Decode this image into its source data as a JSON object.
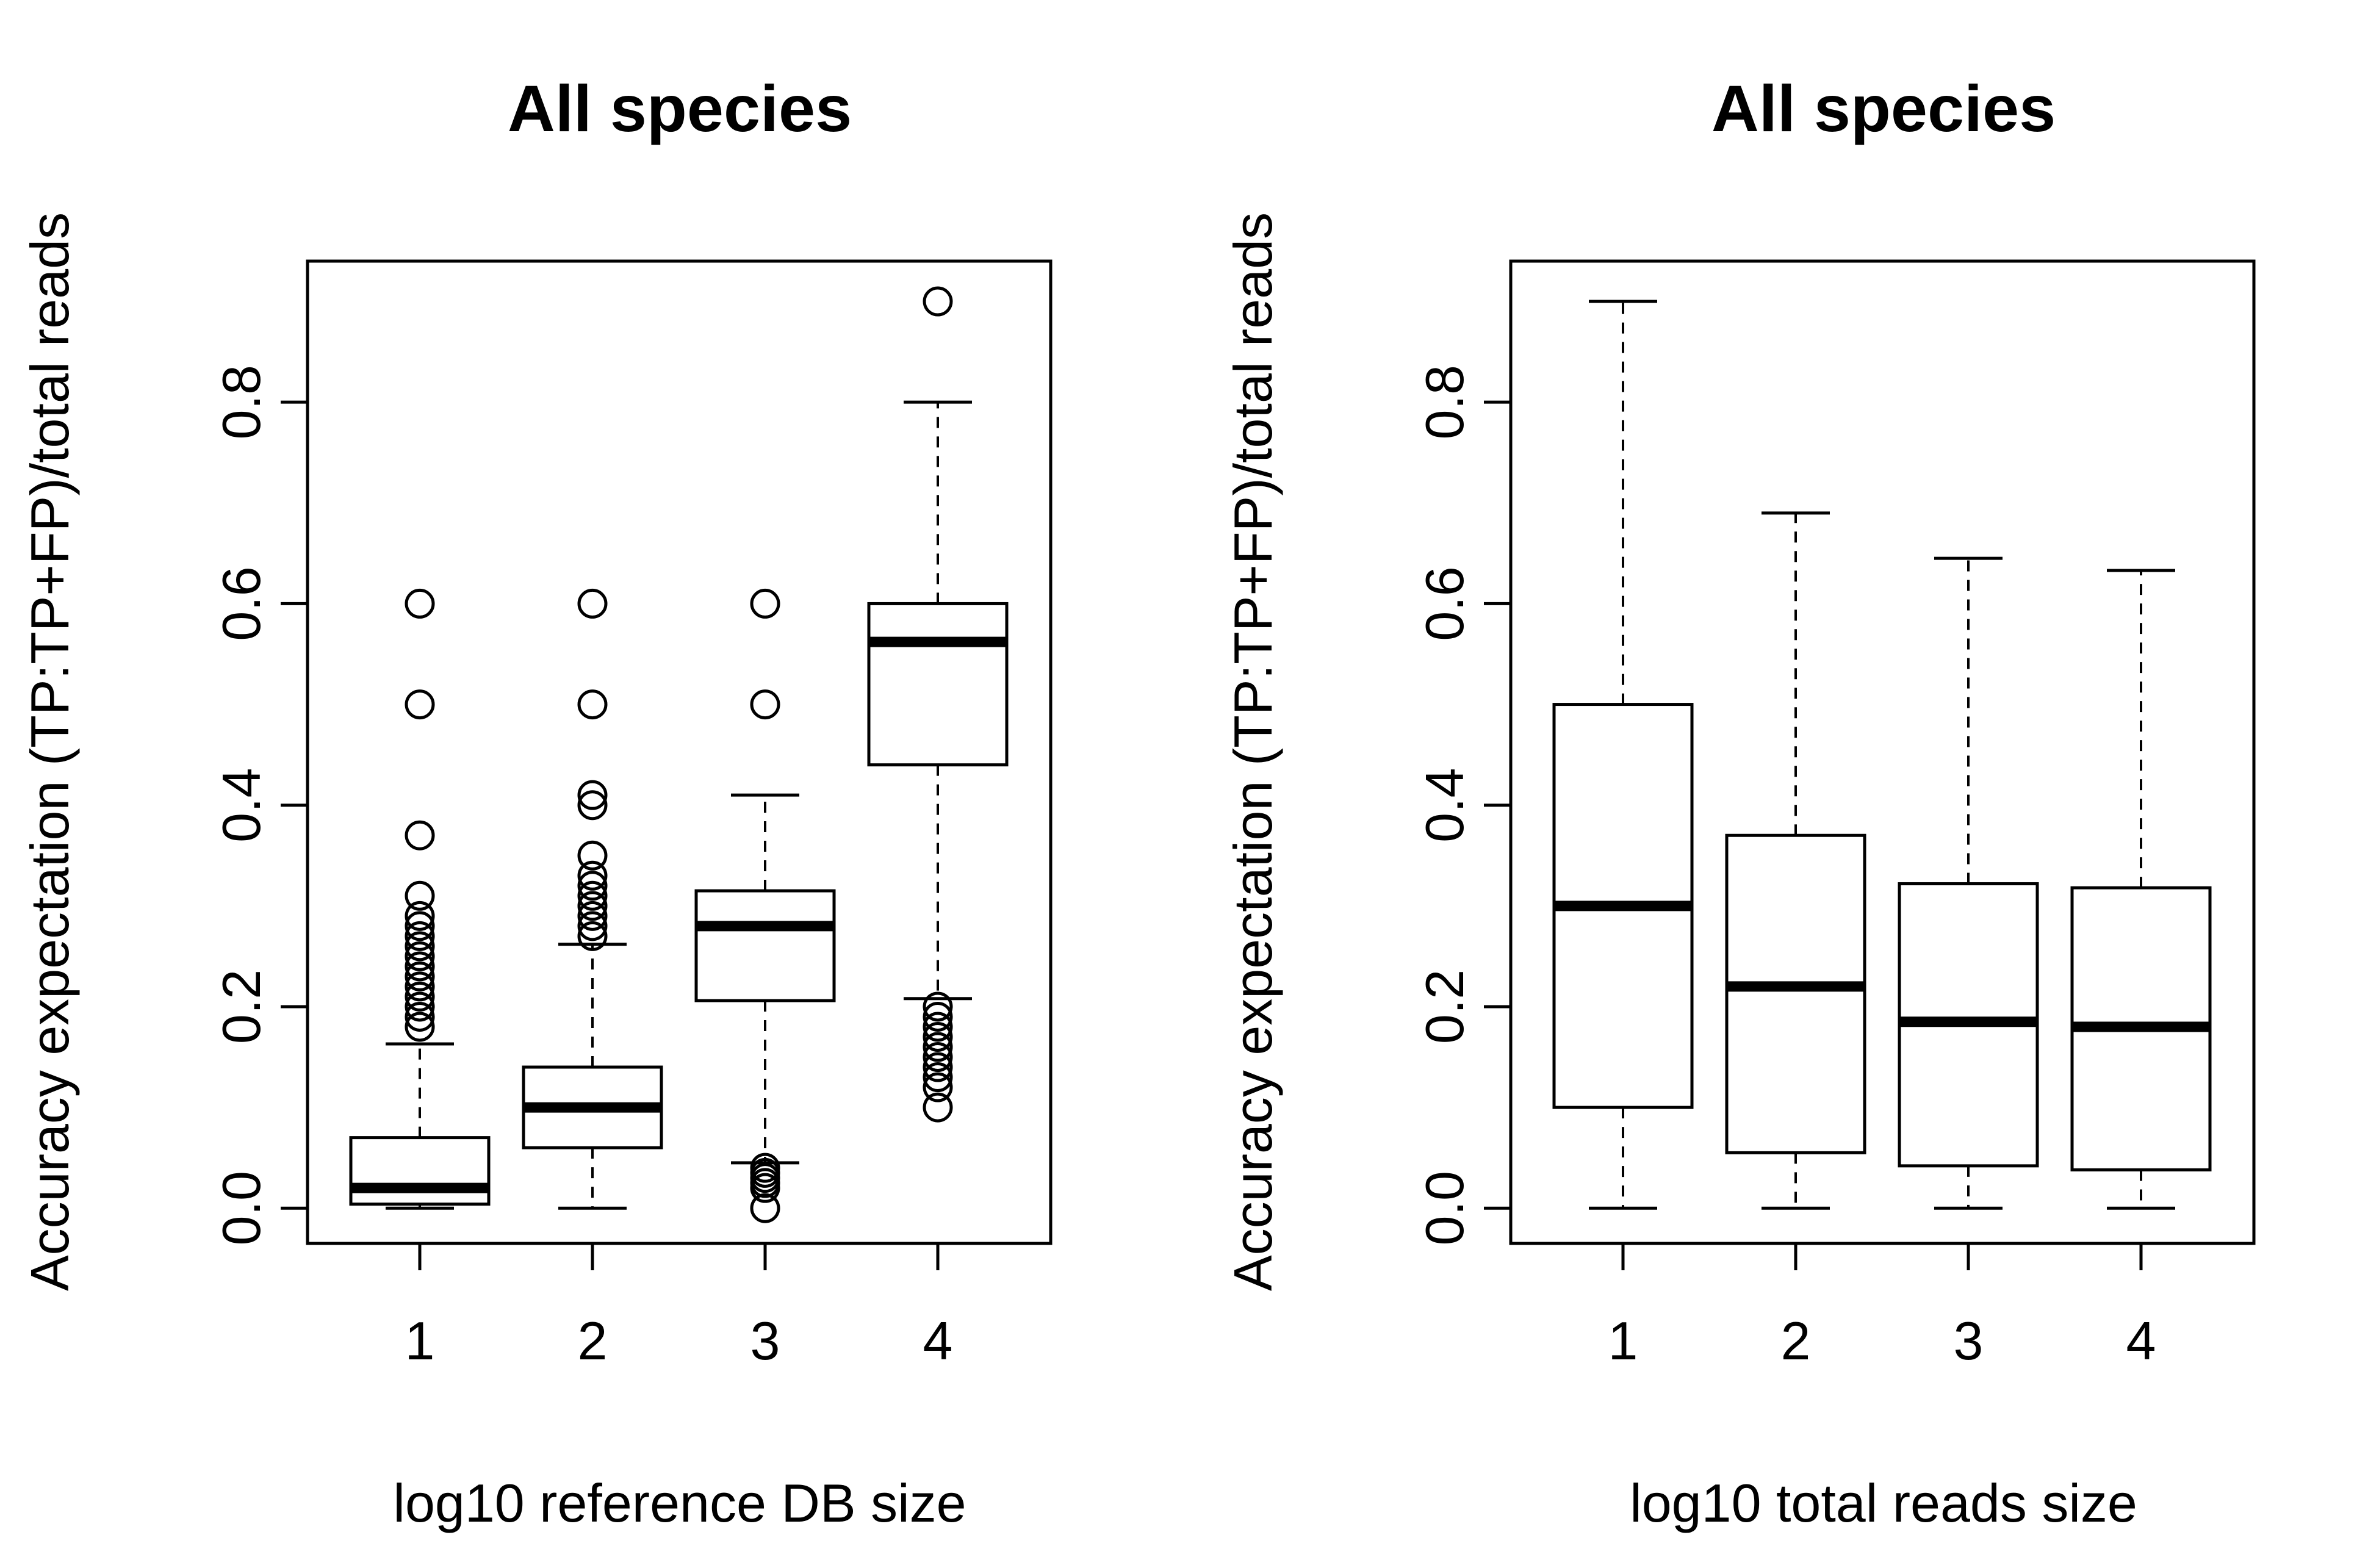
{
  "chart_data": [
    {
      "type": "boxplot",
      "title": "All species",
      "xlabel": "log10 reference DB size",
      "ylabel": "Accuracy expectation (TP:TP+FP)/total reads",
      "ylim": [
        -0.035,
        0.94
      ],
      "yticks": [
        "0.0",
        "0.2",
        "0.4",
        "0.6",
        "0.8"
      ],
      "categories": [
        "1",
        "2",
        "3",
        "4"
      ],
      "boxes": [
        {
          "category": "1",
          "whisker_low": 0.0,
          "q1": 0.004,
          "median": 0.02,
          "q3": 0.07,
          "whisker_high": 0.163,
          "outliers": [
            0.18,
            0.19,
            0.2,
            0.21,
            0.22,
            0.23,
            0.24,
            0.25,
            0.26,
            0.27,
            0.28,
            0.29,
            0.31,
            0.37,
            0.5,
            0.6
          ]
        },
        {
          "category": "2",
          "whisker_low": 0.0,
          "q1": 0.06,
          "median": 0.1,
          "q3": 0.14,
          "whisker_high": 0.262,
          "outliers": [
            0.27,
            0.28,
            0.29,
            0.3,
            0.31,
            0.32,
            0.33,
            0.35,
            0.4,
            0.41,
            0.5,
            0.6
          ]
        },
        {
          "category": "3",
          "whisker_low": 0.045,
          "q1": 0.206,
          "median": 0.28,
          "q3": 0.315,
          "whisker_high": 0.41,
          "outliers": [
            0.0,
            0.02,
            0.025,
            0.03,
            0.035,
            0.04,
            0.5,
            0.6
          ]
        },
        {
          "category": "4",
          "whisker_low": 0.208,
          "q1": 0.44,
          "median": 0.562,
          "q3": 0.6,
          "whisker_high": 0.8,
          "outliers": [
            0.1,
            0.12,
            0.13,
            0.14,
            0.15,
            0.16,
            0.17,
            0.18,
            0.19,
            0.2,
            0.9
          ]
        }
      ]
    },
    {
      "type": "boxplot",
      "title": "All species",
      "xlabel": "log10 total reads size",
      "ylabel": "Accuracy expectation (TP:TP+FP)/total reads",
      "ylim": [
        -0.035,
        0.94
      ],
      "yticks": [
        "0.0",
        "0.2",
        "0.4",
        "0.6",
        "0.8"
      ],
      "categories": [
        "1",
        "2",
        "3",
        "4"
      ],
      "boxes": [
        {
          "category": "1",
          "whisker_low": 0.0,
          "q1": 0.1,
          "median": 0.3,
          "q3": 0.5,
          "whisker_high": 0.9,
          "outliers": []
        },
        {
          "category": "2",
          "whisker_low": 0.0,
          "q1": 0.055,
          "median": 0.22,
          "q3": 0.37,
          "whisker_high": 0.69,
          "outliers": []
        },
        {
          "category": "3",
          "whisker_low": 0.0,
          "q1": 0.042,
          "median": 0.185,
          "q3": 0.322,
          "whisker_high": 0.645,
          "outliers": []
        },
        {
          "category": "4",
          "whisker_low": 0.0,
          "q1": 0.038,
          "median": 0.18,
          "q3": 0.318,
          "whisker_high": 0.633,
          "outliers": []
        }
      ]
    }
  ]
}
